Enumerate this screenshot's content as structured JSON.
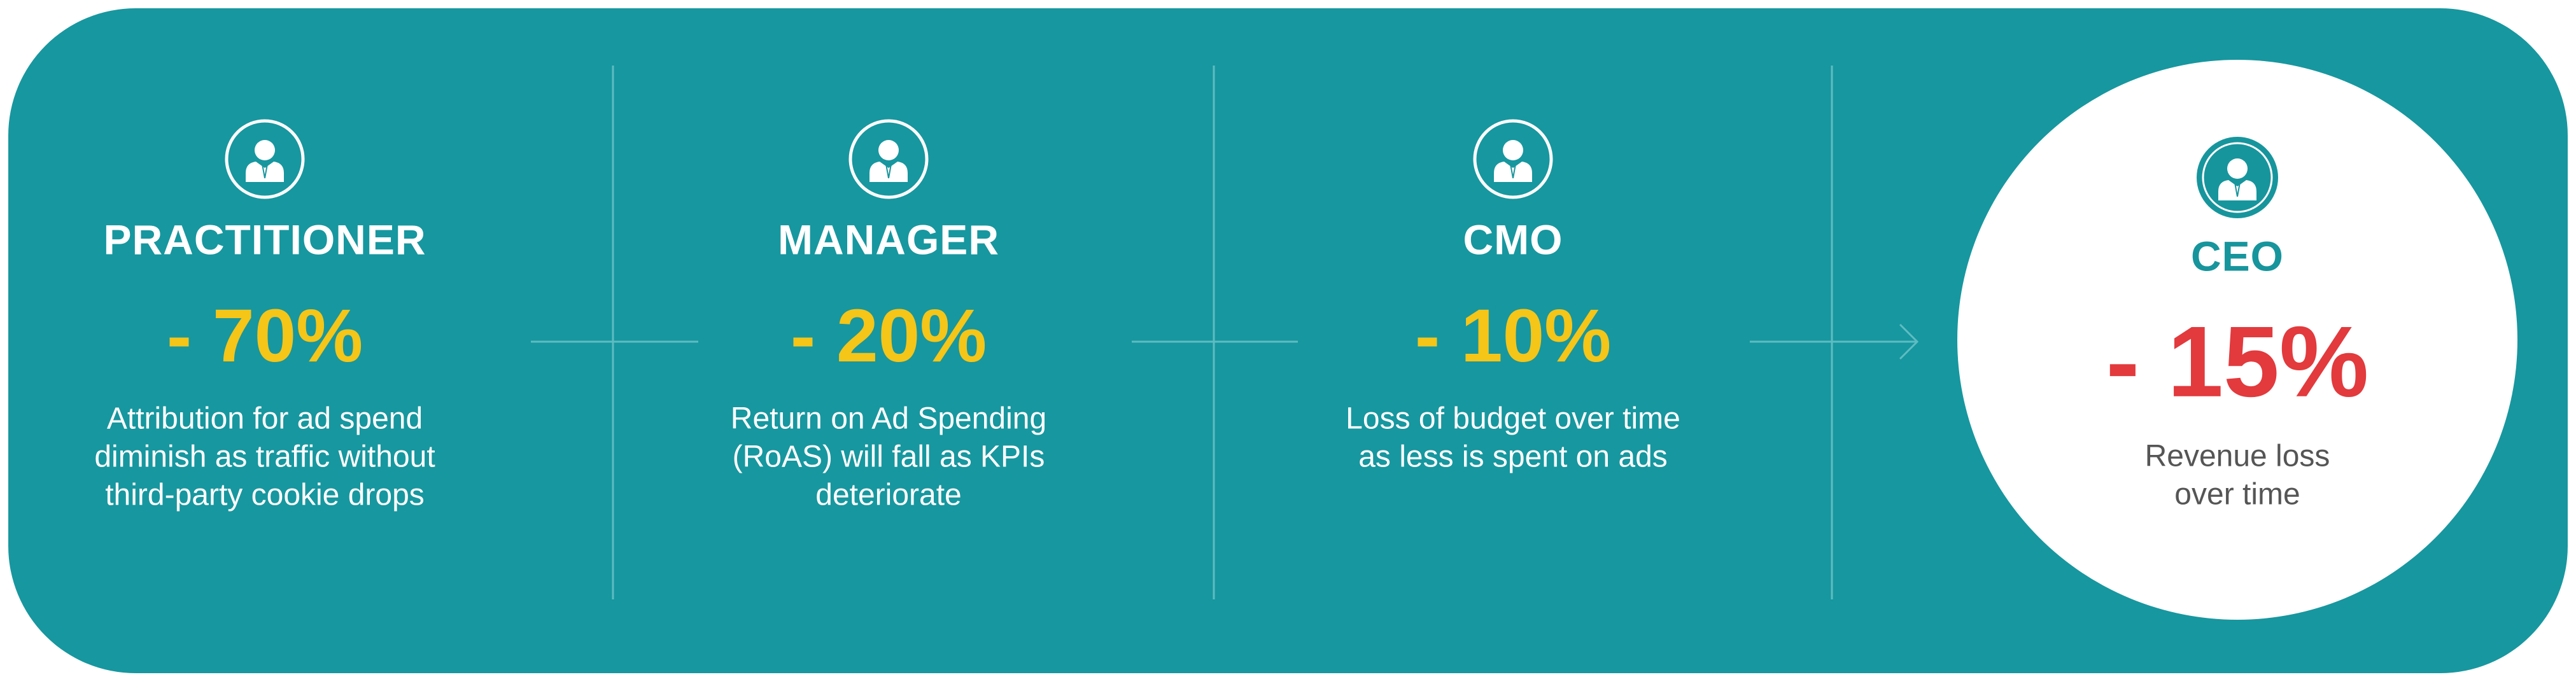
{
  "stages": [
    {
      "role": "PRACTITIONER",
      "change": "- 70%",
      "description": [
        "Attribution for ad spend",
        "diminish as traffic without",
        "third-party cookie drops"
      ]
    },
    {
      "role": "MANAGER",
      "change": "- 20%",
      "description": [
        "Return on Ad Spending",
        "(RoAS) will fall as KPIs",
        "deteriorate"
      ]
    },
    {
      "role": "CMO",
      "change": "- 10%",
      "description": [
        "Loss of budget over time",
        "as less is spent on ads"
      ]
    },
    {
      "role": "CEO",
      "change": "- 15%",
      "description": [
        "Revenue loss",
        "over time"
      ]
    }
  ]
}
